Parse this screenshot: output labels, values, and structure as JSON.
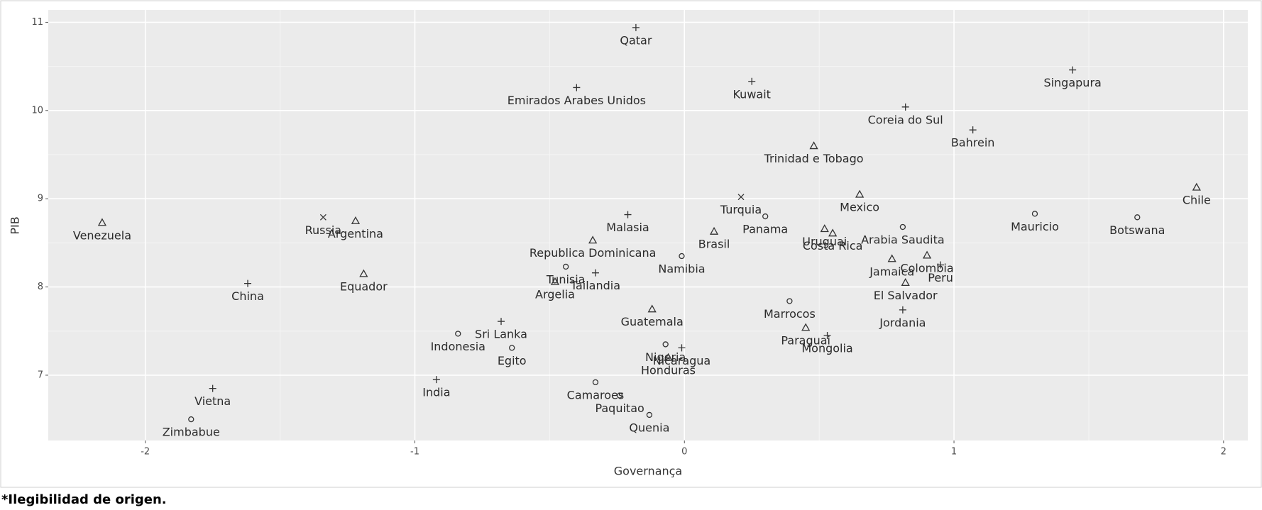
{
  "chart_data": {
    "type": "scatter",
    "x_label": "Governança",
    "y_label": "PIB",
    "xlim": [
      -2.36,
      2.09
    ],
    "ylim": [
      6.26,
      11.14
    ],
    "xticks": [
      -2,
      -1,
      0,
      1,
      2
    ],
    "yticks": [
      7,
      8,
      9,
      10,
      11
    ],
    "grid": true,
    "color": "#333333",
    "points": [
      {
        "label": "Qatar",
        "x": -0.18,
        "y": 10.94,
        "shape": "plus"
      },
      {
        "label": "Singapura",
        "x": 1.44,
        "y": 10.46,
        "shape": "plus"
      },
      {
        "label": "Emirados Arabes Unidos",
        "x": -0.4,
        "y": 10.26,
        "shape": "plus"
      },
      {
        "label": "Kuwait",
        "x": 0.25,
        "y": 10.33,
        "shape": "plus"
      },
      {
        "label": "Coreia do Sul",
        "x": 0.82,
        "y": 10.04,
        "shape": "plus"
      },
      {
        "label": "Bahrein",
        "x": 1.07,
        "y": 9.78,
        "shape": "plus"
      },
      {
        "label": "Trinidad e Tobago",
        "x": 0.48,
        "y": 9.6,
        "shape": "triangle"
      },
      {
        "label": "Chile",
        "x": 1.9,
        "y": 9.13,
        "shape": "triangle"
      },
      {
        "label": "Mexico",
        "x": 0.65,
        "y": 9.05,
        "shape": "triangle"
      },
      {
        "label": "Turquia",
        "x": 0.21,
        "y": 9.02,
        "shape": "cross"
      },
      {
        "label": "Panama",
        "x": 0.3,
        "y": 8.8,
        "shape": "circle"
      },
      {
        "label": "Mauricio",
        "x": 1.3,
        "y": 8.83,
        "shape": "circle"
      },
      {
        "label": "Botswana",
        "x": 1.68,
        "y": 8.79,
        "shape": "circle"
      },
      {
        "label": "Venezuela",
        "x": -2.16,
        "y": 8.73,
        "shape": "triangle"
      },
      {
        "label": "Russia",
        "x": -1.34,
        "y": 8.79,
        "shape": "cross"
      },
      {
        "label": "Argentina",
        "x": -1.22,
        "y": 8.75,
        "shape": "triangle"
      },
      {
        "label": "Malasia",
        "x": -0.21,
        "y": 8.82,
        "shape": "plus"
      },
      {
        "label": "Brasil",
        "x": 0.11,
        "y": 8.63,
        "shape": "triangle"
      },
      {
        "label": "Uruguai",
        "x": 0.52,
        "y": 8.66,
        "shape": "triangle"
      },
      {
        "label": "Arabia Saudita",
        "x": 0.81,
        "y": 8.68,
        "shape": "circle"
      },
      {
        "label": "Costa Rica",
        "x": 0.55,
        "y": 8.61,
        "shape": "triangle"
      },
      {
        "label": "Republica Dominicana",
        "x": -0.34,
        "y": 8.53,
        "shape": "triangle"
      },
      {
        "label": "Namibia",
        "x": -0.01,
        "y": 8.35,
        "shape": "circle"
      },
      {
        "label": "Tunisia",
        "x": -0.44,
        "y": 8.23,
        "shape": "circle"
      },
      {
        "label": "Tailandia",
        "x": -0.33,
        "y": 8.16,
        "shape": "plus"
      },
      {
        "label": "Argelia",
        "x": -0.48,
        "y": 8.06,
        "shape": "triangle"
      },
      {
        "label": "Equador",
        "x": -1.19,
        "y": 8.15,
        "shape": "triangle"
      },
      {
        "label": "China",
        "x": -1.62,
        "y": 8.04,
        "shape": "plus"
      },
      {
        "label": "Jamaica",
        "x": 0.77,
        "y": 8.32,
        "shape": "triangle"
      },
      {
        "label": "Colombia",
        "x": 0.9,
        "y": 8.36,
        "shape": "triangle"
      },
      {
        "label": "Peru",
        "x": 0.95,
        "y": 8.25,
        "shape": "plus"
      },
      {
        "label": "El Salvador",
        "x": 0.82,
        "y": 8.05,
        "shape": "triangle"
      },
      {
        "label": "Marrocos",
        "x": 0.39,
        "y": 7.84,
        "shape": "circle"
      },
      {
        "label": "Jordania",
        "x": 0.81,
        "y": 7.74,
        "shape": "plus"
      },
      {
        "label": "Guatemala",
        "x": -0.12,
        "y": 7.75,
        "shape": "triangle"
      },
      {
        "label": "Sri Lanka",
        "x": -0.68,
        "y": 7.61,
        "shape": "plus"
      },
      {
        "label": "Indonesia",
        "x": -0.84,
        "y": 7.47,
        "shape": "circle"
      },
      {
        "label": "Paraguai",
        "x": 0.45,
        "y": 7.54,
        "shape": "triangle"
      },
      {
        "label": "Mongolia",
        "x": 0.53,
        "y": 7.45,
        "shape": "plus"
      },
      {
        "label": "Egito",
        "x": -0.64,
        "y": 7.31,
        "shape": "circle"
      },
      {
        "label": "Nigeria",
        "x": -0.07,
        "y": 7.35,
        "shape": "circle"
      },
      {
        "label": "Honduras",
        "x": -0.06,
        "y": 7.2,
        "shape": "triangle"
      },
      {
        "label": "Nicaragua",
        "x": -0.01,
        "y": 7.31,
        "shape": "plus"
      },
      {
        "label": "India",
        "x": -0.92,
        "y": 6.95,
        "shape": "plus"
      },
      {
        "label": "Camaroes",
        "x": -0.33,
        "y": 6.92,
        "shape": "circle"
      },
      {
        "label": "Vietna",
        "x": -1.75,
        "y": 6.85,
        "shape": "plus"
      },
      {
        "label": "Paquitao",
        "x": -0.24,
        "y": 6.77,
        "shape": "circle"
      },
      {
        "label": "Zimbabue",
        "x": -1.83,
        "y": 6.5,
        "shape": "circle"
      },
      {
        "label": "Quenia",
        "x": -0.13,
        "y": 6.55,
        "shape": "circle"
      }
    ]
  },
  "footnote": "*Ilegibilidad de origen."
}
